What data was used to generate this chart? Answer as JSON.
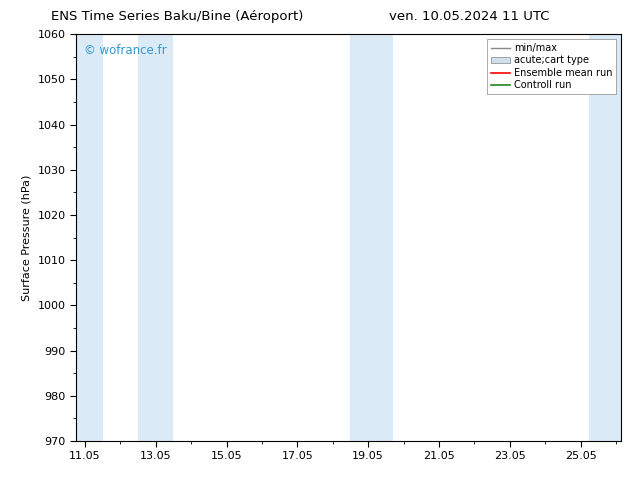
{
  "title_left": "ENS Time Series Baku/Bine (Aéroport)",
  "title_right": "ven. 10.05.2024 11 UTC",
  "ylabel": "Surface Pressure (hPa)",
  "ylim": [
    970,
    1060
  ],
  "yticks": [
    970,
    980,
    990,
    1000,
    1010,
    1020,
    1030,
    1040,
    1050,
    1060
  ],
  "xlim_start": 10.8,
  "xlim_end": 26.2,
  "xticks": [
    11.05,
    13.05,
    15.05,
    17.05,
    19.05,
    21.05,
    23.05,
    25.05
  ],
  "xticklabels": [
    "11.05",
    "13.05",
    "15.05",
    "17.05",
    "19.05",
    "21.05",
    "23.05",
    "25.05"
  ],
  "background_color": "#ffffff",
  "shaded_bands": [
    {
      "x_start": 10.8,
      "x_end": 11.55,
      "color": "#ddeeff"
    },
    {
      "x_start": 12.55,
      "x_end": 13.55,
      "color": "#ddeeff"
    },
    {
      "x_start": 18.55,
      "x_end": 19.55,
      "color": "#ddeeff"
    },
    {
      "x_start": 19.55,
      "x_end": 19.75,
      "color": "#ddeeff"
    },
    {
      "x_start": 25.3,
      "x_end": 26.2,
      "color": "#ddeeff"
    }
  ],
  "watermark": "© wofrance.fr",
  "watermark_color": "#3399cc",
  "legend_items": [
    {
      "label": "min/max",
      "color": "#aaaaaa",
      "type": "errorbar"
    },
    {
      "label": "acute;cart type",
      "color": "#cce0f0",
      "type": "box"
    },
    {
      "label": "Ensemble mean run",
      "color": "#ff0000",
      "type": "line"
    },
    {
      "label": "Controll run",
      "color": "#008800",
      "type": "line"
    }
  ],
  "band_color": "#daeaf7"
}
